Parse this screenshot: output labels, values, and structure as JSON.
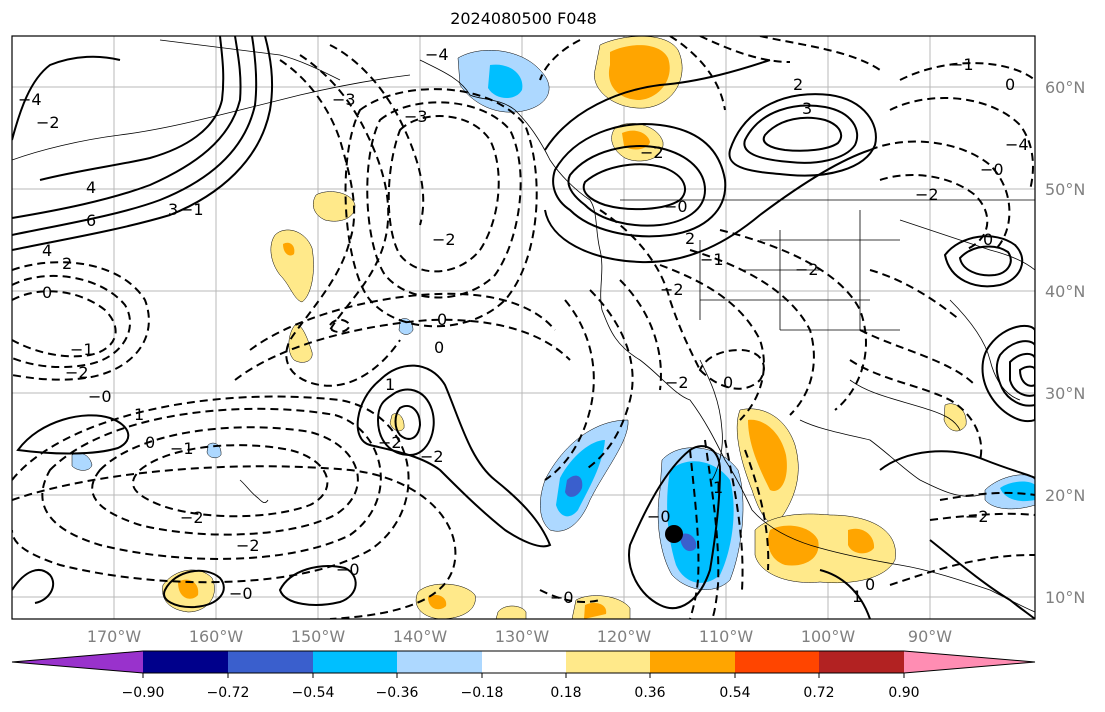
{
  "title": "2024080500 F048",
  "lat_labels": [
    "60°N",
    "50°N",
    "40°N",
    "30°N",
    "20°N",
    "10°N"
  ],
  "lon_labels": [
    "170°W",
    "160°W",
    "150°W",
    "140°W",
    "130°W",
    "120°W",
    "110°W",
    "100°W",
    "90°W"
  ],
  "colorbar": {
    "ticks": [
      "−0.90",
      "−0.72",
      "−0.54",
      "−0.36",
      "−0.18",
      "0.18",
      "0.36",
      "0.54",
      "0.72",
      "0.90"
    ],
    "colors": [
      "#9932cc",
      "#00008b",
      "#3a5fcd",
      "#00bfff",
      "#add8ff",
      "#ffffff",
      "#ffe98a",
      "#ffa500",
      "#ff4500",
      "#b22222",
      "#ff8db3"
    ]
  },
  "contour_labels": [
    "4",
    "6",
    "4",
    "2",
    "0",
    "−1",
    "−2",
    "−0",
    "1",
    "0",
    "−1",
    "−2",
    "−2",
    "−0",
    "−0",
    "−4",
    "−2",
    "−3",
    "−2",
    "0",
    "0",
    "1",
    "−2",
    "−2",
    "−2",
    "−2",
    "−0",
    "2",
    "−1",
    "2",
    "3",
    "0",
    "−2",
    "1",
    "−0",
    "−0",
    "1",
    "−2",
    "0",
    "−2",
    "0",
    "−4",
    "3",
    "−3",
    "−1",
    "−2",
    "−0",
    "−4",
    "0",
    "−1"
  ],
  "marker": "storm-center-dot"
}
